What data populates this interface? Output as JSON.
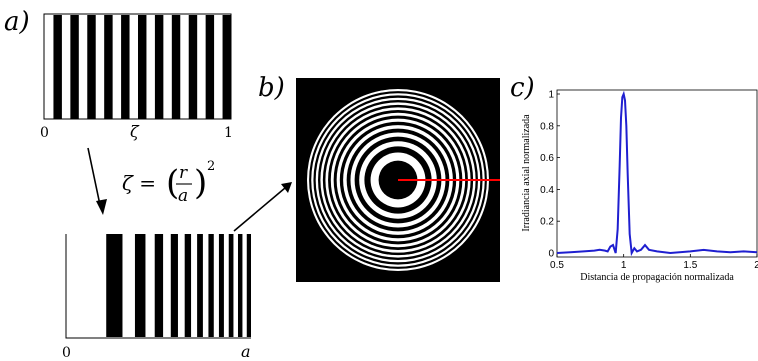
{
  "panels": {
    "a": {
      "label": "a)",
      "tick_start": "0",
      "tick_mid": "ζ",
      "tick_end": "1"
    },
    "b": {
      "label": "b)"
    },
    "c": {
      "label": "c)"
    }
  },
  "transform": {
    "lhs": "ζ =",
    "num": "r",
    "den": "a",
    "exp": "2"
  },
  "stretched": {
    "tick_start": "0",
    "tick_end": "a"
  },
  "colors": {
    "stripe": "#000000",
    "paper": "#ffffff",
    "curve": "#1f1fd0",
    "marker": "#ff0000"
  },
  "chart_data": {
    "type": "line",
    "xlabel": "Distancia de propagación normalizada",
    "ylabel": "Irradiancia axial normalizada",
    "xlim": [
      0.5,
      2
    ],
    "ylim": [
      0,
      1
    ],
    "xticks": [
      "0.5",
      "1",
      "1.5",
      "2"
    ],
    "yticks": [
      "0",
      "0.2",
      "0.4",
      "0.6",
      "0.8",
      "1"
    ],
    "series": [
      {
        "x": [
          0.5,
          0.6,
          0.7,
          0.78,
          0.82,
          0.86,
          0.88,
          0.9,
          0.92,
          0.94,
          0.955,
          0.97,
          0.98,
          0.99,
          1.0,
          1.01,
          1.02,
          1.03,
          1.045,
          1.06,
          1.08,
          1.1,
          1.13,
          1.16,
          1.19,
          1.25,
          1.35,
          1.5,
          1.6,
          1.7,
          1.8,
          1.9,
          2.0
        ],
        "y": [
          0.0,
          0.005,
          0.01,
          0.015,
          0.02,
          0.015,
          0.01,
          0.04,
          0.05,
          0.0,
          0.15,
          0.55,
          0.85,
          0.98,
          1.0,
          0.96,
          0.8,
          0.5,
          0.12,
          0.0,
          0.03,
          0.01,
          0.02,
          0.05,
          0.02,
          0.01,
          0.0,
          0.01,
          0.02,
          0.01,
          0.005,
          0.01,
          0.005
        ]
      }
    ]
  }
}
